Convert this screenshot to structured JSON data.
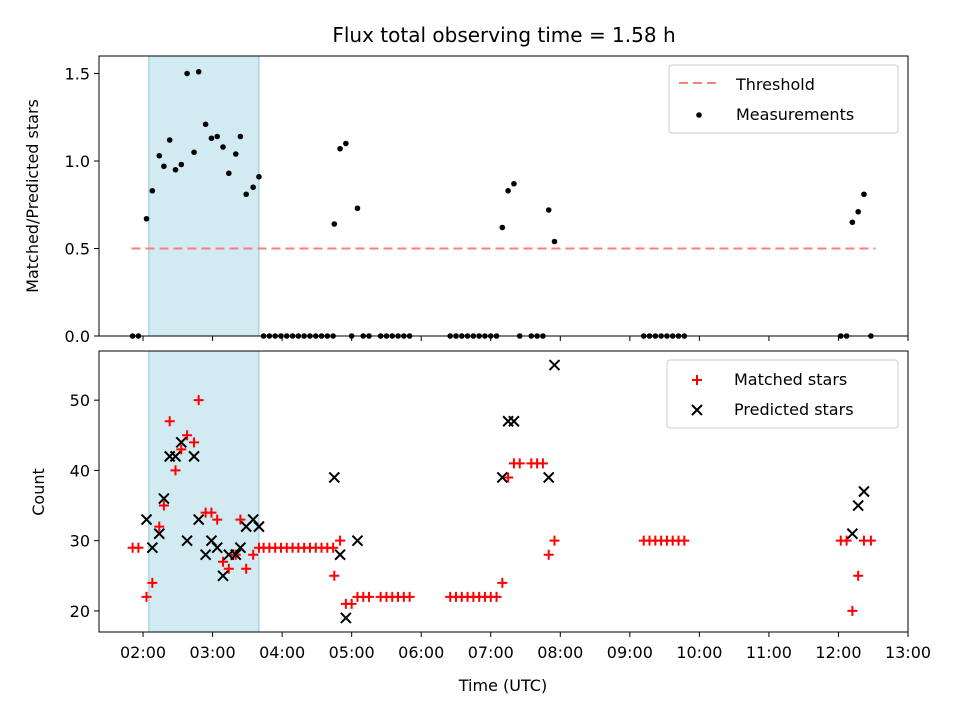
{
  "chart_data": [
    {
      "type": "scatter",
      "title": "Flux total observing time = 1.58 h",
      "xlabel": "",
      "ylabel": "Matched/Predicted stars",
      "xlim": [
        "01:22",
        "13:00"
      ],
      "ylim": [
        0,
        1.6
      ],
      "yticks": [
        "0.0",
        "0.5",
        "1.0",
        "1.5"
      ],
      "shaded_region": [
        "02:05",
        "03:40"
      ],
      "shade_color": "#add8e6",
      "grid": false,
      "legend_position": "top-right",
      "legend": [
        "Threshold",
        "Measurements"
      ],
      "threshold": {
        "name": "Threshold",
        "value": 0.5,
        "x_range": [
          "01:50",
          "12:32"
        ],
        "color": "#ff7f7f"
      },
      "series": [
        {
          "name": "Measurements",
          "color": "#000000",
          "points": [
            [
              "01:51",
              0
            ],
            [
              "01:56",
              0
            ],
            [
              "02:03",
              0.67
            ],
            [
              "02:08",
              0.83
            ],
            [
              "02:14",
              1.03
            ],
            [
              "02:18",
              0.97
            ],
            [
              "02:23",
              1.12
            ],
            [
              "02:28",
              0.95
            ],
            [
              "02:33",
              0.98
            ],
            [
              "02:38",
              1.5
            ],
            [
              "02:44",
              1.05
            ],
            [
              "02:48",
              1.51
            ],
            [
              "02:54",
              1.21
            ],
            [
              "02:59",
              1.13
            ],
            [
              "03:04",
              1.14
            ],
            [
              "03:09",
              1.08
            ],
            [
              "03:14",
              0.93
            ],
            [
              "03:20",
              1.04
            ],
            [
              "03:24",
              1.14
            ],
            [
              "03:29",
              0.81
            ],
            [
              "03:35",
              0.85
            ],
            [
              "03:40",
              0.91
            ],
            [
              "03:44",
              0
            ],
            [
              "03:49",
              0
            ],
            [
              "03:54",
              0
            ],
            [
              "03:59",
              0
            ],
            [
              "04:04",
              0
            ],
            [
              "04:09",
              0
            ],
            [
              "04:14",
              0
            ],
            [
              "04:19",
              0
            ],
            [
              "04:24",
              0
            ],
            [
              "04:29",
              0
            ],
            [
              "04:34",
              0
            ],
            [
              "04:39",
              0
            ],
            [
              "04:44",
              0
            ],
            [
              "04:45",
              0.64
            ],
            [
              "04:50",
              1.07
            ],
            [
              "04:55",
              1.1
            ],
            [
              "05:00",
              0
            ],
            [
              "05:05",
              0.73
            ],
            [
              "05:10",
              0
            ],
            [
              "05:15",
              0
            ],
            [
              "05:25",
              0
            ],
            [
              "05:30",
              0
            ],
            [
              "05:35",
              0
            ],
            [
              "05:40",
              0
            ],
            [
              "05:45",
              0
            ],
            [
              "05:50",
              0
            ],
            [
              "06:25",
              0
            ],
            [
              "06:30",
              0
            ],
            [
              "06:35",
              0
            ],
            [
              "06:40",
              0
            ],
            [
              "06:45",
              0
            ],
            [
              "06:50",
              0
            ],
            [
              "06:55",
              0
            ],
            [
              "07:00",
              0
            ],
            [
              "07:05",
              0
            ],
            [
              "07:10",
              0.62
            ],
            [
              "07:15",
              0.83
            ],
            [
              "07:20",
              0.87
            ],
            [
              "07:25",
              0
            ],
            [
              "07:35",
              0
            ],
            [
              "07:40",
              0
            ],
            [
              "07:45",
              0
            ],
            [
              "07:50",
              0.72
            ],
            [
              "07:55",
              0.54
            ],
            [
              "09:12",
              0
            ],
            [
              "09:17",
              0
            ],
            [
              "09:22",
              0
            ],
            [
              "09:27",
              0
            ],
            [
              "09:32",
              0
            ],
            [
              "09:37",
              0
            ],
            [
              "09:42",
              0
            ],
            [
              "09:47",
              0
            ],
            [
              "12:02",
              0
            ],
            [
              "12:07",
              0
            ],
            [
              "12:12",
              0.65
            ],
            [
              "12:17",
              0.71
            ],
            [
              "12:22",
              0.81
            ],
            [
              "12:28",
              0
            ]
          ]
        }
      ]
    },
    {
      "type": "scatter",
      "title": "",
      "xlabel": "Time (UTC)",
      "ylabel": "Count",
      "xlim": [
        "01:22",
        "13:00"
      ],
      "ylim": [
        17,
        57
      ],
      "yticks": [
        "20",
        "30",
        "40",
        "50"
      ],
      "xticks": [
        "02:00",
        "03:00",
        "04:00",
        "05:00",
        "06:00",
        "07:00",
        "08:00",
        "09:00",
        "10:00",
        "11:00",
        "12:00",
        "13:00"
      ],
      "shaded_region": [
        "02:05",
        "03:40"
      ],
      "shade_color": "#add8e6",
      "grid": false,
      "legend_position": "top-right",
      "legend": [
        "Matched stars",
        "Predicted stars"
      ],
      "series": [
        {
          "name": "Matched stars",
          "marker": "plus",
          "color": "#ff0000",
          "points": [
            [
              "01:51",
              29
            ],
            [
              "01:56",
              29
            ],
            [
              "02:03",
              22
            ],
            [
              "02:08",
              24
            ],
            [
              "02:14",
              32
            ],
            [
              "02:18",
              35
            ],
            [
              "02:23",
              47
            ],
            [
              "02:28",
              40
            ],
            [
              "02:33",
              43
            ],
            [
              "02:38",
              45
            ],
            [
              "02:44",
              44
            ],
            [
              "02:48",
              50
            ],
            [
              "02:54",
              34
            ],
            [
              "02:59",
              34
            ],
            [
              "03:04",
              33
            ],
            [
              "03:09",
              27
            ],
            [
              "03:14",
              26
            ],
            [
              "03:20",
              28
            ],
            [
              "03:24",
              33
            ],
            [
              "03:29",
              26
            ],
            [
              "03:35",
              28
            ],
            [
              "03:40",
              29
            ],
            [
              "03:44",
              29
            ],
            [
              "03:49",
              29
            ],
            [
              "03:54",
              29
            ],
            [
              "03:59",
              29
            ],
            [
              "04:04",
              29
            ],
            [
              "04:09",
              29
            ],
            [
              "04:14",
              29
            ],
            [
              "04:19",
              29
            ],
            [
              "04:24",
              29
            ],
            [
              "04:29",
              29
            ],
            [
              "04:34",
              29
            ],
            [
              "04:39",
              29
            ],
            [
              "04:44",
              29
            ],
            [
              "04:45",
              25
            ],
            [
              "04:50",
              30
            ],
            [
              "04:55",
              21
            ],
            [
              "05:00",
              21
            ],
            [
              "05:05",
              22
            ],
            [
              "05:10",
              22
            ],
            [
              "05:15",
              22
            ],
            [
              "05:25",
              22
            ],
            [
              "05:30",
              22
            ],
            [
              "05:35",
              22
            ],
            [
              "05:40",
              22
            ],
            [
              "05:45",
              22
            ],
            [
              "05:50",
              22
            ],
            [
              "06:25",
              22
            ],
            [
              "06:30",
              22
            ],
            [
              "06:35",
              22
            ],
            [
              "06:40",
              22
            ],
            [
              "06:45",
              22
            ],
            [
              "06:50",
              22
            ],
            [
              "06:55",
              22
            ],
            [
              "07:00",
              22
            ],
            [
              "07:05",
              22
            ],
            [
              "07:10",
              24
            ],
            [
              "07:15",
              39
            ],
            [
              "07:20",
              41
            ],
            [
              "07:25",
              41
            ],
            [
              "07:35",
              41
            ],
            [
              "07:40",
              41
            ],
            [
              "07:45",
              41
            ],
            [
              "07:50",
              28
            ],
            [
              "07:55",
              30
            ],
            [
              "09:12",
              30
            ],
            [
              "09:17",
              30
            ],
            [
              "09:22",
              30
            ],
            [
              "09:27",
              30
            ],
            [
              "09:32",
              30
            ],
            [
              "09:37",
              30
            ],
            [
              "09:42",
              30
            ],
            [
              "09:47",
              30
            ],
            [
              "12:02",
              30
            ],
            [
              "12:07",
              30
            ],
            [
              "12:12",
              20
            ],
            [
              "12:17",
              25
            ],
            [
              "12:22",
              30
            ],
            [
              "12:28",
              30
            ]
          ]
        },
        {
          "name": "Predicted stars",
          "marker": "x",
          "color": "#000000",
          "points": [
            [
              "02:03",
              33
            ],
            [
              "02:08",
              29
            ],
            [
              "02:14",
              31
            ],
            [
              "02:18",
              36
            ],
            [
              "02:23",
              42
            ],
            [
              "02:28",
              42
            ],
            [
              "02:33",
              44
            ],
            [
              "02:38",
              30
            ],
            [
              "02:44",
              42
            ],
            [
              "02:48",
              33
            ],
            [
              "02:54",
              28
            ],
            [
              "02:59",
              30
            ],
            [
              "03:04",
              29
            ],
            [
              "03:09",
              25
            ],
            [
              "03:14",
              28
            ],
            [
              "03:20",
              28
            ],
            [
              "03:24",
              29
            ],
            [
              "03:29",
              32
            ],
            [
              "03:35",
              33
            ],
            [
              "03:40",
              32
            ],
            [
              "04:45",
              39
            ],
            [
              "04:50",
              28
            ],
            [
              "04:55",
              19
            ],
            [
              "05:05",
              30
            ],
            [
              "07:10",
              39
            ],
            [
              "07:15",
              47
            ],
            [
              "07:20",
              47
            ],
            [
              "07:50",
              39
            ],
            [
              "07:55",
              55
            ],
            [
              "12:12",
              31
            ],
            [
              "12:17",
              35
            ],
            [
              "12:22",
              37
            ]
          ]
        }
      ]
    }
  ]
}
